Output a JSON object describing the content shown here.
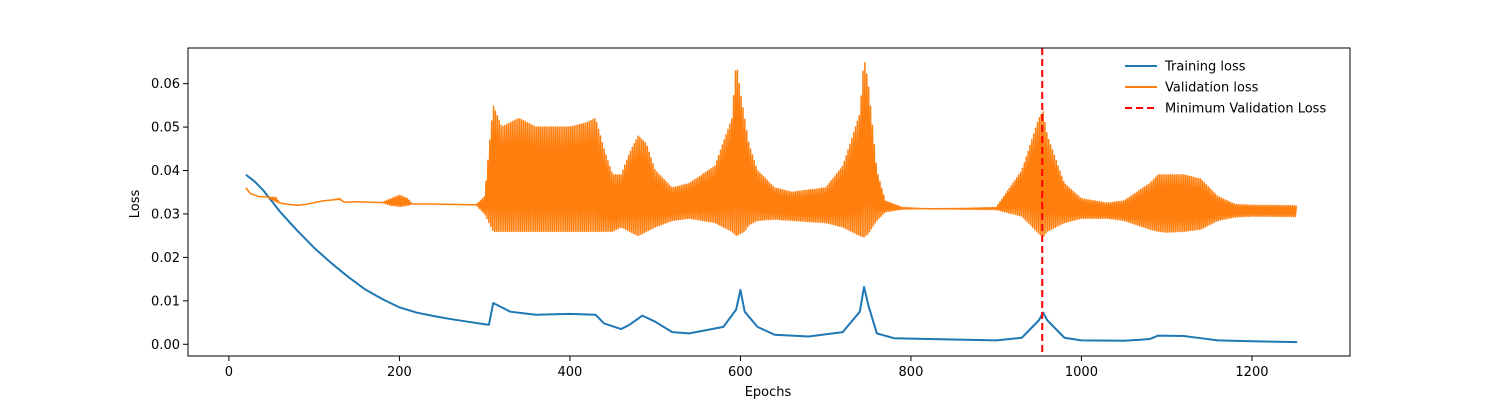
{
  "chart_data": {
    "type": "line",
    "xlabel": "Epochs",
    "ylabel": "Loss",
    "xlim": [
      -48,
      1315
    ],
    "ylim": [
      -0.0027,
      0.0682
    ],
    "grid": false,
    "legend_placement": "top-right",
    "x_ticks": [
      0,
      200,
      400,
      600,
      800,
      1000,
      1200
    ],
    "x_tick_labels": [
      "0",
      "200",
      "400",
      "600",
      "800",
      "1000",
      "1200"
    ],
    "y_ticks": [
      0.0,
      0.01,
      0.02,
      0.03,
      0.04,
      0.05,
      0.06
    ],
    "y_tick_labels": [
      "0.00",
      "0.01",
      "0.02",
      "0.03",
      "0.04",
      "0.05",
      "0.06"
    ],
    "series": [
      {
        "name": "Training loss",
        "color": "#1f77b4",
        "style": "solid",
        "x": [
          20,
          30,
          40,
          50,
          60,
          80,
          100,
          120,
          140,
          160,
          180,
          200,
          220,
          240,
          260,
          280,
          300,
          305,
          310,
          330,
          360,
          400,
          430,
          440,
          460,
          470,
          485,
          500,
          520,
          540,
          580,
          595,
          600,
          605,
          620,
          640,
          680,
          720,
          740,
          745,
          750,
          760,
          780,
          820,
          900,
          930,
          950,
          955,
          960,
          980,
          1000,
          1050,
          1080,
          1090,
          1120,
          1140,
          1160,
          1200,
          1253
        ],
        "y": [
          0.039,
          0.0375,
          0.0355,
          0.033,
          0.0305,
          0.0262,
          0.0222,
          0.0187,
          0.0155,
          0.0126,
          0.0104,
          0.0085,
          0.0073,
          0.0065,
          0.0058,
          0.0052,
          0.0046,
          0.0045,
          0.0095,
          0.0075,
          0.0068,
          0.007,
          0.0068,
          0.0048,
          0.0035,
          0.0045,
          0.0066,
          0.0052,
          0.0028,
          0.0025,
          0.004,
          0.008,
          0.0125,
          0.0075,
          0.004,
          0.0022,
          0.0018,
          0.0028,
          0.0075,
          0.0132,
          0.009,
          0.0025,
          0.0014,
          0.0012,
          0.0009,
          0.0015,
          0.0055,
          0.0073,
          0.0055,
          0.0015,
          0.0009,
          0.0008,
          0.0012,
          0.002,
          0.0019,
          0.0014,
          0.0009,
          0.0007,
          0.0005
        ]
      },
      {
        "name": "Validation loss",
        "color": "#ff7f0e",
        "style": "solid",
        "x": [
          20,
          25,
          35,
          45,
          55,
          60,
          70,
          80,
          90,
          100,
          110,
          120,
          130,
          135,
          150,
          180,
          190,
          200,
          210,
          215,
          230,
          260,
          290,
          300,
          305,
          310,
          320,
          340,
          360,
          380,
          400,
          420,
          430,
          440,
          450,
          460,
          470,
          480,
          490,
          500,
          520,
          540,
          570,
          590,
          595,
          600,
          605,
          610,
          620,
          640,
          660,
          700,
          720,
          740,
          745,
          750,
          760,
          770,
          790,
          820,
          860,
          900,
          930,
          950,
          955,
          960,
          980,
          1000,
          1030,
          1050,
          1080,
          1090,
          1100,
          1120,
          1140,
          1160,
          1180,
          1200,
          1253
        ],
        "y_low": [
          0.036,
          0.0347,
          0.034,
          0.0339,
          0.0328,
          0.0325,
          0.0322,
          0.032,
          0.0322,
          0.0326,
          0.033,
          0.0332,
          0.0333,
          0.0327,
          0.0328,
          0.0326,
          0.032,
          0.0317,
          0.032,
          0.0323,
          0.0323,
          0.0322,
          0.0321,
          0.03,
          0.028,
          0.026,
          0.026,
          0.026,
          0.026,
          0.026,
          0.026,
          0.026,
          0.026,
          0.026,
          0.026,
          0.027,
          0.026,
          0.025,
          0.026,
          0.027,
          0.0285,
          0.029,
          0.028,
          0.026,
          0.025,
          0.0255,
          0.026,
          0.0275,
          0.0285,
          0.0288,
          0.0285,
          0.028,
          0.027,
          0.025,
          0.0247,
          0.0255,
          0.0285,
          0.0305,
          0.0311,
          0.0312,
          0.0311,
          0.031,
          0.0295,
          0.0255,
          0.0247,
          0.026,
          0.028,
          0.029,
          0.029,
          0.0285,
          0.0265,
          0.026,
          0.0258,
          0.026,
          0.0265,
          0.0285,
          0.0293,
          0.0295,
          0.0294
        ],
        "y_high": [
          0.036,
          0.0347,
          0.034,
          0.0339,
          0.0338,
          0.0325,
          0.0322,
          0.032,
          0.0322,
          0.0326,
          0.033,
          0.0332,
          0.0336,
          0.0327,
          0.0328,
          0.0326,
          0.0335,
          0.0343,
          0.0335,
          0.0323,
          0.0323,
          0.0322,
          0.0321,
          0.034,
          0.045,
          0.055,
          0.05,
          0.052,
          0.05,
          0.05,
          0.05,
          0.051,
          0.052,
          0.045,
          0.039,
          0.039,
          0.044,
          0.048,
          0.046,
          0.04,
          0.036,
          0.037,
          0.041,
          0.052,
          0.065,
          0.058,
          0.052,
          0.046,
          0.04,
          0.036,
          0.035,
          0.036,
          0.041,
          0.053,
          0.066,
          0.06,
          0.04,
          0.033,
          0.0315,
          0.0312,
          0.0313,
          0.0315,
          0.04,
          0.052,
          0.0535,
          0.048,
          0.037,
          0.0335,
          0.0325,
          0.033,
          0.037,
          0.039,
          0.039,
          0.039,
          0.038,
          0.034,
          0.0322,
          0.032,
          0.0319
        ]
      },
      {
        "name": "Minimum Validation Loss",
        "color": "#ff0000",
        "style": "dashed",
        "type": "vline",
        "x": 954
      }
    ]
  }
}
